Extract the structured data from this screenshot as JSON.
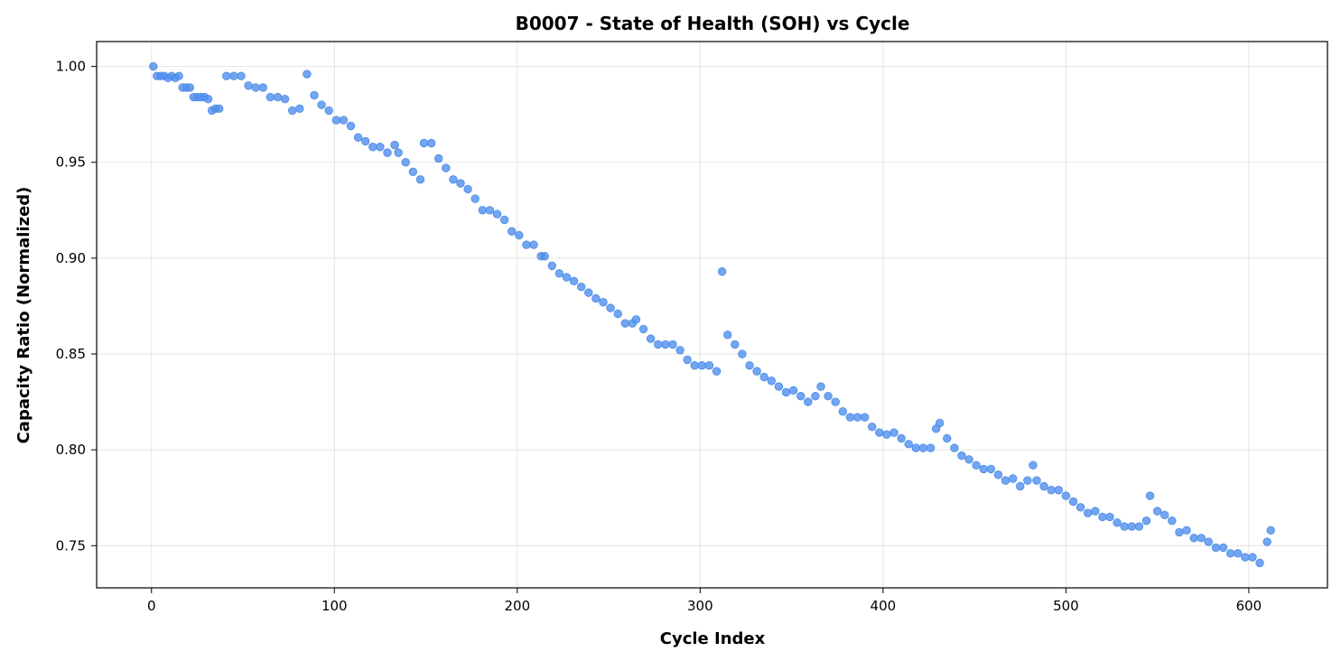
{
  "chart_data": {
    "type": "scatter",
    "title": "B0007 - State of Health (SOH) vs Cycle",
    "xlabel": "Cycle Index",
    "ylabel": "Capacity Ratio (Normalized)",
    "xlim": [
      -30,
      643
    ],
    "ylim": [
      0.728,
      1.013
    ],
    "xticks": [
      0,
      100,
      200,
      300,
      400,
      500,
      600
    ],
    "xtick_labels": [
      "0",
      "100",
      "200",
      "300",
      "400",
      "500",
      "600"
    ],
    "yticks": [
      0.75,
      0.8,
      0.85,
      0.9,
      0.95,
      1.0
    ],
    "ytick_labels": [
      "0.75",
      "0.80",
      "0.85",
      "0.90",
      "0.95",
      "1.00"
    ],
    "grid": true,
    "marker_color": "#4f8ff0",
    "marker_opacity": 0.8,
    "series": [
      {
        "x": [
          1,
          3,
          5,
          7,
          9,
          11,
          13,
          15,
          17,
          19,
          21,
          23,
          25,
          27,
          29,
          31,
          33,
          35,
          37,
          41,
          45,
          49,
          53,
          57,
          61,
          65,
          69,
          73,
          77,
          81,
          85,
          89,
          93,
          97,
          101,
          105,
          109,
          113,
          117,
          121,
          125,
          129,
          133,
          135,
          139,
          143,
          147,
          149,
          153,
          157,
          161,
          165,
          169,
          173,
          177,
          181,
          185,
          189,
          193,
          197,
          201,
          205,
          209,
          213,
          215,
          219,
          223,
          227,
          231,
          235,
          239,
          243,
          247,
          251,
          255,
          259,
          263,
          265,
          269,
          273,
          277,
          281,
          285,
          289,
          293,
          297,
          301,
          305,
          309,
          312,
          315,
          319,
          323,
          327,
          331,
          335,
          339,
          343,
          347,
          351,
          355,
          359,
          363,
          366,
          370,
          374,
          378,
          382,
          386,
          390,
          394,
          398,
          402,
          406,
          410,
          414,
          418,
          422,
          426,
          429,
          431,
          435,
          439,
          443,
          447,
          451,
          455,
          459,
          463,
          467,
          471,
          475,
          479,
          482,
          484,
          488,
          492,
          496,
          500,
          504,
          508,
          512,
          516,
          520,
          524,
          528,
          532,
          536,
          540,
          544,
          546,
          550,
          554,
          558,
          562,
          566,
          570,
          574,
          578,
          582,
          586,
          590,
          594,
          598,
          602,
          606,
          610,
          612
        ],
        "y": [
          1.0,
          0.995,
          0.995,
          0.995,
          0.994,
          0.995,
          0.994,
          0.995,
          0.989,
          0.989,
          0.989,
          0.984,
          0.984,
          0.984,
          0.984,
          0.983,
          0.977,
          0.978,
          0.978,
          0.995,
          0.995,
          0.995,
          0.99,
          0.989,
          0.989,
          0.984,
          0.984,
          0.983,
          0.977,
          0.978,
          0.996,
          0.985,
          0.98,
          0.977,
          0.972,
          0.972,
          0.969,
          0.963,
          0.961,
          0.958,
          0.958,
          0.955,
          0.959,
          0.955,
          0.95,
          0.945,
          0.941,
          0.96,
          0.96,
          0.952,
          0.947,
          0.941,
          0.939,
          0.936,
          0.931,
          0.925,
          0.925,
          0.923,
          0.92,
          0.914,
          0.912,
          0.907,
          0.907,
          0.901,
          0.901,
          0.896,
          0.892,
          0.89,
          0.888,
          0.885,
          0.882,
          0.879,
          0.877,
          0.874,
          0.871,
          0.866,
          0.866,
          0.868,
          0.863,
          0.858,
          0.855,
          0.855,
          0.855,
          0.852,
          0.847,
          0.844,
          0.844,
          0.844,
          0.841,
          0.893,
          0.86,
          0.855,
          0.85,
          0.844,
          0.841,
          0.838,
          0.836,
          0.833,
          0.83,
          0.831,
          0.828,
          0.825,
          0.828,
          0.833,
          0.828,
          0.825,
          0.82,
          0.817,
          0.817,
          0.817,
          0.812,
          0.809,
          0.808,
          0.809,
          0.806,
          0.803,
          0.801,
          0.801,
          0.801,
          0.811,
          0.814,
          0.806,
          0.801,
          0.797,
          0.795,
          0.792,
          0.79,
          0.79,
          0.787,
          0.784,
          0.785,
          0.781,
          0.784,
          0.792,
          0.784,
          0.781,
          0.779,
          0.779,
          0.776,
          0.773,
          0.77,
          0.767,
          0.768,
          0.765,
          0.765,
          0.762,
          0.76,
          0.76,
          0.76,
          0.763,
          0.776,
          0.768,
          0.766,
          0.763,
          0.757,
          0.758,
          0.754,
          0.754,
          0.752,
          0.749,
          0.749,
          0.746,
          0.746,
          0.744,
          0.744,
          0.741,
          0.752,
          0.758
        ]
      }
    ]
  }
}
